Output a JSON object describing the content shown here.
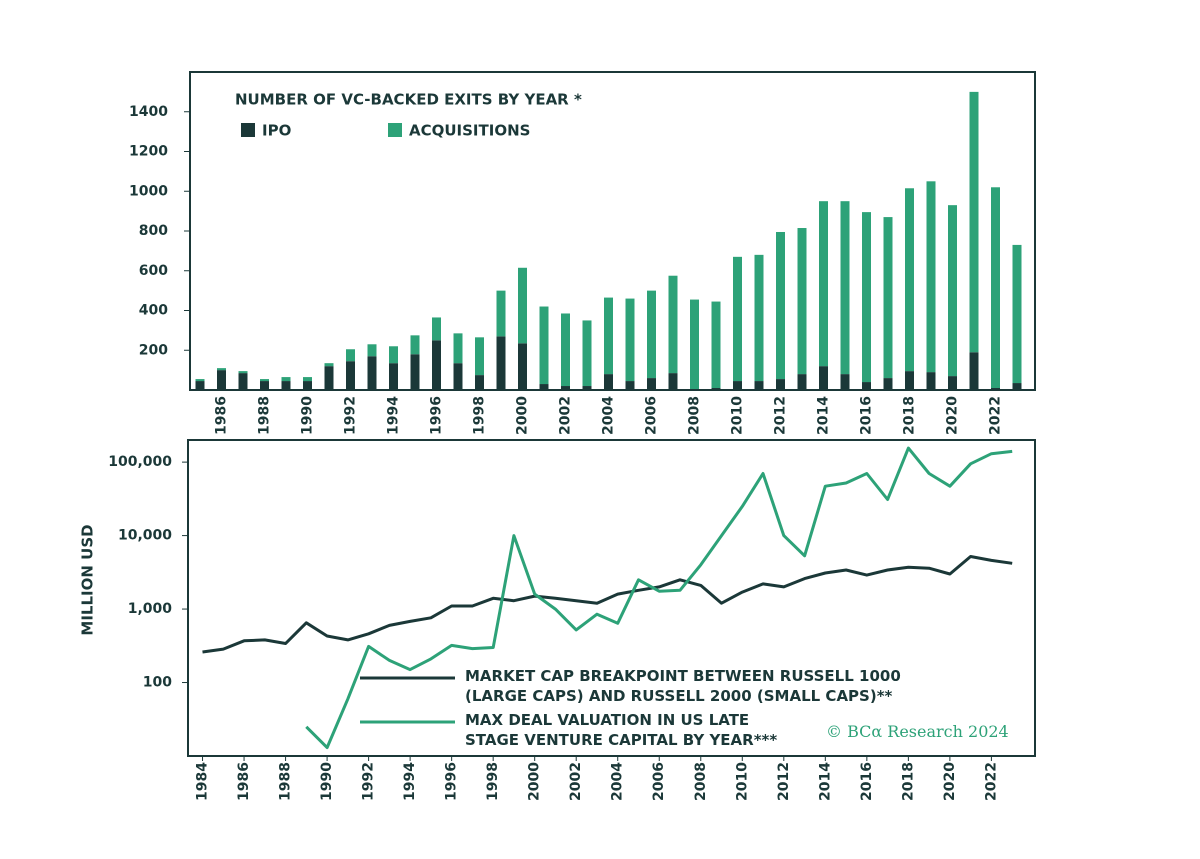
{
  "chart_data": [
    {
      "type": "bar",
      "stacked": true,
      "title": "NUMBER OF VC-BACKED EXITS BY YEAR *",
      "categories": [
        null,
        "1986",
        null,
        "1988",
        null,
        "1990",
        null,
        "1992",
        null,
        "1994",
        null,
        "1996",
        null,
        "1998",
        null,
        "2000",
        null,
        "2002",
        null,
        "2004",
        null,
        "2006",
        null,
        "2008",
        null,
        "2010",
        null,
        "2012",
        null,
        "2014",
        null,
        "2016",
        null,
        "2018",
        null,
        "2020",
        null,
        "2022",
        null
      ],
      "series": [
        {
          "name": "IPO",
          "color": "#1b3838",
          "values": [
            45,
            100,
            85,
            45,
            45,
            45,
            120,
            145,
            170,
            135,
            180,
            250,
            135,
            75,
            270,
            235,
            30,
            20,
            20,
            80,
            45,
            60,
            85,
            5,
            10,
            45,
            45,
            55,
            80,
            120,
            80,
            40,
            60,
            95,
            90,
            70,
            190,
            10,
            35
          ]
        },
        {
          "name": "ACQUISITIONS",
          "color": "#2da278",
          "values": [
            10,
            10,
            10,
            10,
            20,
            20,
            15,
            60,
            60,
            85,
            95,
            115,
            150,
            190,
            230,
            380,
            390,
            365,
            330,
            385,
            415,
            440,
            490,
            450,
            435,
            625,
            635,
            740,
            735,
            830,
            870,
            855,
            810,
            920,
            960,
            860,
            1310,
            1010,
            695
          ]
        }
      ],
      "ylim": [
        0,
        1600
      ],
      "yticks": [
        200,
        400,
        600,
        800,
        1000,
        1200,
        1400
      ]
    },
    {
      "type": "line",
      "y_scale": "log",
      "ylabel": "MILLION USD",
      "annotation": "© BCα Research 2024",
      "x": [
        1984,
        1985,
        1986,
        1987,
        1988,
        1989,
        1990,
        1991,
        1992,
        1993,
        1994,
        1995,
        1996,
        1997,
        1998,
        1999,
        2000,
        2001,
        2002,
        2003,
        2004,
        2005,
        2006,
        2007,
        2008,
        2009,
        2010,
        2011,
        2012,
        2013,
        2014,
        2015,
        2016,
        2017,
        2018,
        2019,
        2020,
        2021,
        2022,
        2023
      ],
      "series": [
        {
          "name": "MARKET CAP BREAKPOINT BETWEEN RUSSELL 1000 (LARGE CAPS) AND RUSSELL 2000 (SMALL CAPS)**",
          "color": "#1b3838",
          "values": [
            260,
            285,
            370,
            380,
            340,
            650,
            430,
            380,
            460,
            600,
            680,
            760,
            1100,
            1100,
            1400,
            1300,
            1500,
            1400,
            1300,
            1200,
            1600,
            1800,
            2000,
            2500,
            2100,
            1200,
            1700,
            2200,
            2000,
            2600,
            3100,
            3400,
            2900,
            3400,
            3700,
            3600,
            3000,
            5200,
            4600,
            4200
          ]
        },
        {
          "name": "MAX DEAL VALUATION IN US LATE STAGE VENTURE CAPITAL BY YEAR***",
          "color": "#2da278",
          "values": [
            null,
            null,
            null,
            null,
            null,
            25,
            13,
            60,
            310,
            200,
            150,
            210,
            320,
            290,
            300,
            10000,
            1600,
            1000,
            520,
            850,
            640,
            2500,
            1750,
            1800,
            4000,
            10000,
            25000,
            70000,
            10000,
            5300,
            47000,
            52000,
            70000,
            31000,
            155000,
            70000,
            47000,
            95000,
            130000,
            140000
          ]
        }
      ],
      "xlim": [
        1983.3,
        2024.1
      ],
      "xticks": [
        1984,
        1986,
        1988,
        1990,
        1992,
        1994,
        1996,
        1998,
        2000,
        2002,
        2004,
        2006,
        2008,
        2010,
        2012,
        2014,
        2016,
        2018,
        2020,
        2022
      ],
      "ylim": [
        10,
        200000
      ],
      "yticks": [
        100,
        {
          "value": 1000,
          "label": "1,000"
        },
        {
          "value": 10000,
          "label": "10,000"
        },
        {
          "value": 100000,
          "label": "100,000"
        }
      ]
    }
  ]
}
